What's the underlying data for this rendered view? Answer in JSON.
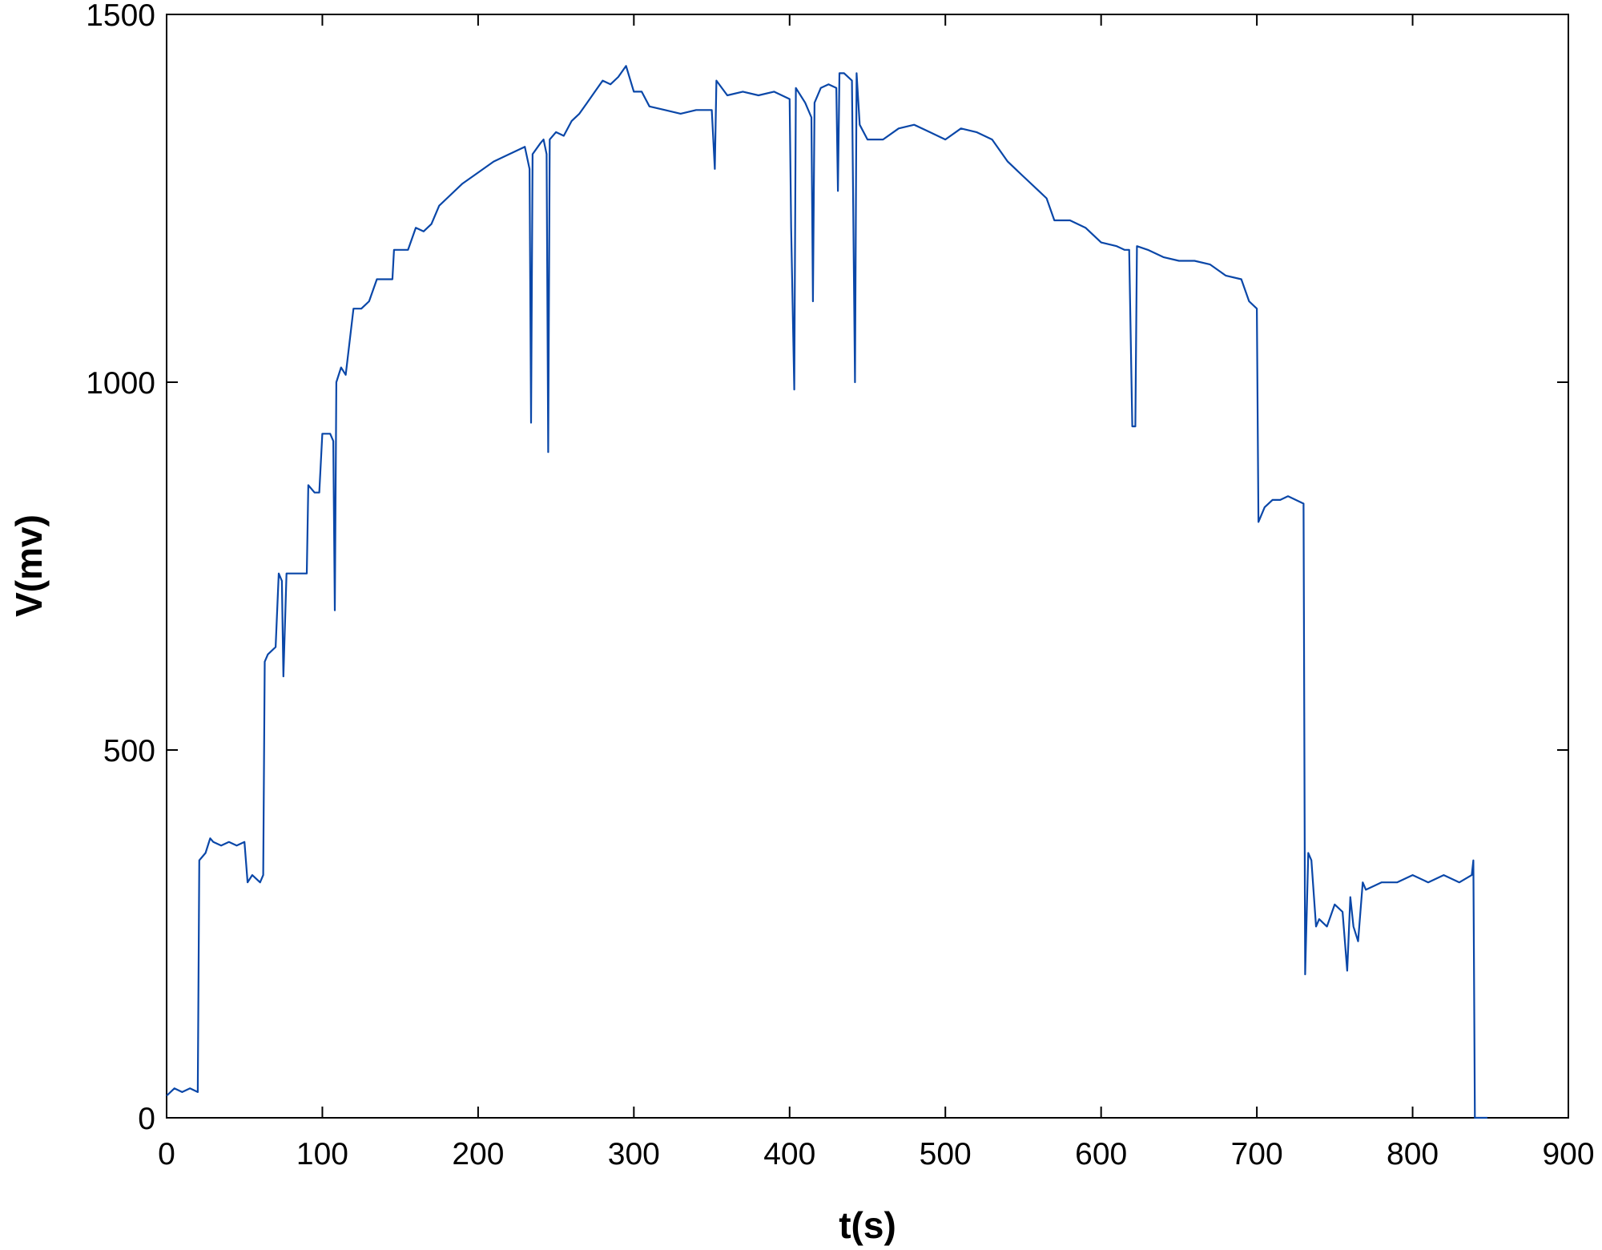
{
  "chart_data": {
    "type": "line",
    "xlabel": "t(s)",
    "ylabel": "V(mv)",
    "color": "#0a47a8",
    "x": [
      0,
      5,
      10,
      15,
      20,
      21,
      25,
      28,
      30,
      35,
      40,
      45,
      50,
      52,
      55,
      60,
      62,
      63,
      65,
      70,
      72,
      74,
      75,
      77,
      80,
      85,
      90,
      91,
      95,
      98,
      100,
      105,
      107,
      108,
      109,
      112,
      115,
      120,
      125,
      130,
      135,
      140,
      145,
      146,
      150,
      155,
      160,
      165,
      170,
      175,
      180,
      190,
      200,
      210,
      220,
      230,
      233,
      234,
      235,
      240,
      242,
      244,
      245,
      246,
      250,
      255,
      260,
      265,
      270,
      275,
      280,
      285,
      290,
      295,
      300,
      305,
      310,
      320,
      330,
      340,
      350,
      352,
      353,
      360,
      370,
      380,
      390,
      400,
      401,
      403,
      404,
      410,
      414,
      415,
      416,
      420,
      425,
      430,
      431,
      432,
      435,
      440,
      442,
      443,
      445,
      450,
      460,
      470,
      480,
      490,
      500,
      510,
      520,
      530,
      540,
      550,
      560,
      565,
      570,
      580,
      590,
      600,
      610,
      615,
      618,
      620,
      622,
      623,
      630,
      640,
      650,
      660,
      670,
      680,
      690,
      695,
      700,
      701,
      705,
      710,
      715,
      720,
      725,
      730,
      731,
      733,
      735,
      738,
      740,
      745,
      750,
      755,
      758,
      760,
      762,
      765,
      768,
      770,
      780,
      790,
      800,
      810,
      820,
      830,
      838,
      839,
      840,
      848
    ],
    "values": [
      30,
      40,
      35,
      40,
      35,
      350,
      360,
      380,
      375,
      370,
      375,
      370,
      375,
      320,
      330,
      320,
      330,
      620,
      630,
      640,
      740,
      730,
      600,
      740,
      740,
      740,
      740,
      860,
      850,
      850,
      930,
      930,
      920,
      690,
      1000,
      1020,
      1010,
      1100,
      1100,
      1110,
      1140,
      1140,
      1140,
      1180,
      1180,
      1180,
      1210,
      1205,
      1215,
      1240,
      1250,
      1270,
      1285,
      1300,
      1310,
      1320,
      1290,
      945,
      1310,
      1325,
      1330,
      1310,
      905,
      1330,
      1340,
      1335,
      1355,
      1365,
      1380,
      1395,
      1410,
      1405,
      1415,
      1430,
      1395,
      1395,
      1375,
      1370,
      1365,
      1370,
      1370,
      1290,
      1410,
      1390,
      1395,
      1390,
      1395,
      1385,
      1210,
      990,
      1400,
      1380,
      1360,
      1110,
      1380,
      1400,
      1405,
      1400,
      1260,
      1420,
      1420,
      1410,
      1000,
      1420,
      1350,
      1330,
      1330,
      1345,
      1350,
      1340,
      1330,
      1345,
      1340,
      1330,
      1300,
      1280,
      1260,
      1250,
      1220,
      1220,
      1210,
      1190,
      1185,
      1180,
      1180,
      940,
      940,
      1185,
      1180,
      1170,
      1165,
      1165,
      1160,
      1145,
      1140,
      1110,
      1100,
      810,
      830,
      840,
      840,
      845,
      840,
      835,
      195,
      360,
      350,
      260,
      270,
      260,
      290,
      280,
      200,
      300,
      260,
      240,
      320,
      310,
      320,
      320,
      330,
      320,
      330,
      320,
      330,
      350,
      0,
      0
    ],
    "xlim": [
      0,
      900
    ],
    "xticks": [
      0,
      100,
      200,
      300,
      400,
      500,
      600,
      700,
      800,
      900
    ],
    "ylim": [
      0,
      1500
    ],
    "yticks": [
      0,
      500,
      1000,
      1500
    ],
    "grid": false
  }
}
